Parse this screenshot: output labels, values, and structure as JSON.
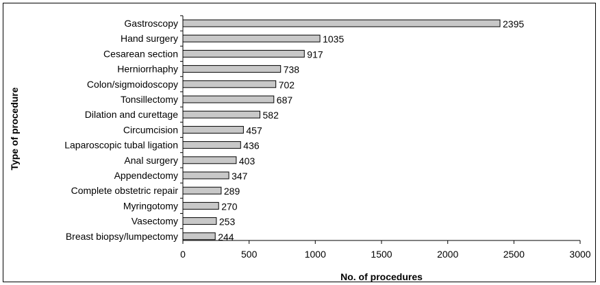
{
  "chart_data": {
    "type": "bar",
    "orientation": "horizontal",
    "xlabel": "No. of procedures",
    "ylabel": "Type of procedure",
    "xlim": [
      0,
      3000
    ],
    "xticks": [
      "0",
      "500",
      "1000",
      "1500",
      "2000",
      "2500",
      "3000"
    ],
    "grid": false,
    "legend": "none",
    "bar_color": "#c8c8c8",
    "categories": [
      "Gastroscopy",
      "Hand surgery",
      "Cesarean section",
      "Herniorrhaphy",
      "Colon/sigmoidoscopy",
      "Tonsillectomy",
      "Dilation and curettage",
      "Circumcision",
      "Laparoscopic tubal ligation",
      "Anal surgery",
      "Appendectomy",
      "Complete obstetric repair",
      "Myringotomy",
      "Vasectomy",
      "Breast biopsy/lumpectomy"
    ],
    "values": [
      2395,
      1035,
      917,
      738,
      702,
      687,
      582,
      457,
      436,
      403,
      347,
      289,
      270,
      253,
      244
    ],
    "value_labels": [
      "2395",
      "1035",
      "917",
      "738",
      "702",
      "687",
      "582",
      "457",
      "436",
      "403",
      "347",
      "289",
      "270",
      "253",
      "244"
    ]
  }
}
